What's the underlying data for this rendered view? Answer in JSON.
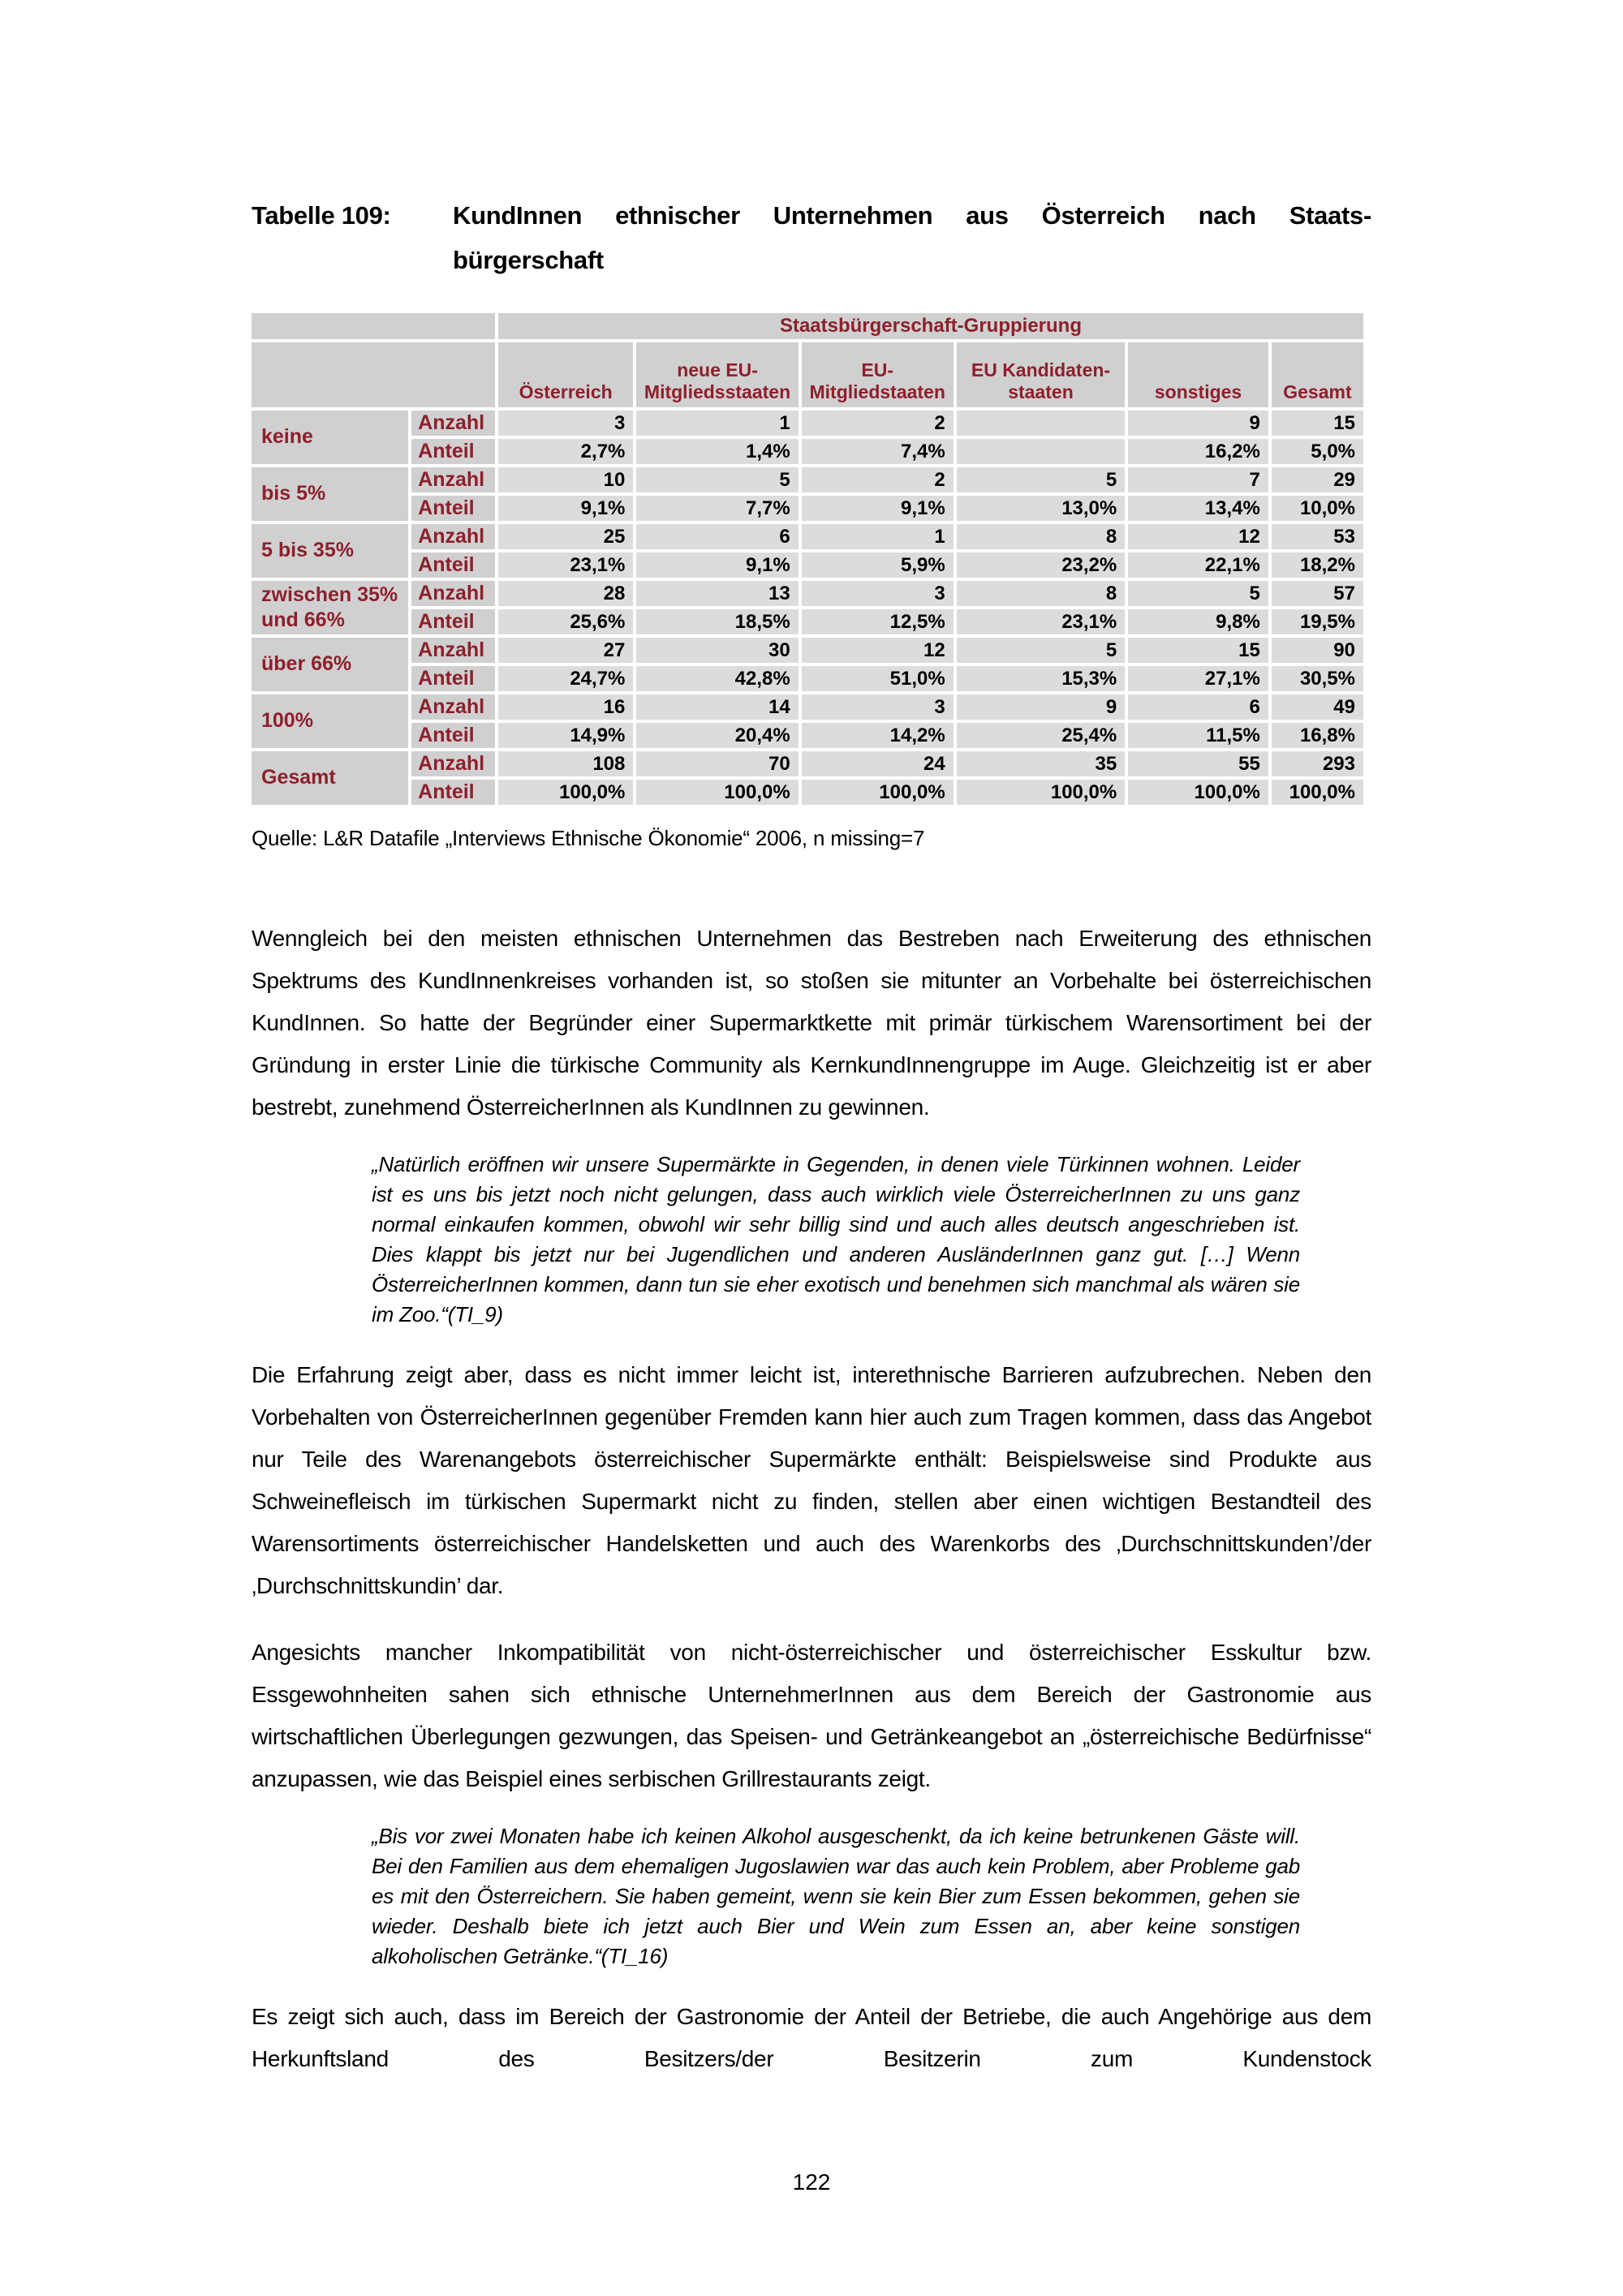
{
  "title": {
    "label": "Tabelle 109:",
    "line1": "KundInnen ethnischer Unternehmen aus Österreich nach Staats-",
    "line2": "bürgerschaft"
  },
  "table": {
    "group_header": "Staatsbürgerschaft-Gruppierung",
    "columns": [
      "Österreich",
      "neue EU-\nMitgliedsstaaten",
      "EU-\nMitgliedstaaten",
      "EU Kandidaten-\nstaaten",
      "sonstiges",
      "Gesamt"
    ],
    "measure_labels": [
      "Anzahl",
      "Anteil"
    ],
    "groups": [
      {
        "label": "keine",
        "anzahl": [
          "3",
          "1",
          "2",
          "",
          "9",
          "15"
        ],
        "anteil": [
          "2,7%",
          "1,4%",
          "7,4%",
          "",
          "16,2%",
          "5,0%"
        ]
      },
      {
        "label": "bis 5%",
        "anzahl": [
          "10",
          "5",
          "2",
          "5",
          "7",
          "29"
        ],
        "anteil": [
          "9,1%",
          "7,7%",
          "9,1%",
          "13,0%",
          "13,4%",
          "10,0%"
        ]
      },
      {
        "label": "5 bis 35%",
        "anzahl": [
          "25",
          "6",
          "1",
          "8",
          "12",
          "53"
        ],
        "anteil": [
          "23,1%",
          "9,1%",
          "5,9%",
          "23,2%",
          "22,1%",
          "18,2%"
        ]
      },
      {
        "label": "zwischen 35% und 66%",
        "anzahl": [
          "28",
          "13",
          "3",
          "8",
          "5",
          "57"
        ],
        "anteil": [
          "25,6%",
          "18,5%",
          "12,5%",
          "23,1%",
          "9,8%",
          "19,5%"
        ]
      },
      {
        "label": "über 66%",
        "anzahl": [
          "27",
          "30",
          "12",
          "5",
          "15",
          "90"
        ],
        "anteil": [
          "24,7%",
          "42,8%",
          "51,0%",
          "15,3%",
          "27,1%",
          "30,5%"
        ]
      },
      {
        "label": "100%",
        "anzahl": [
          "16",
          "14",
          "3",
          "9",
          "6",
          "49"
        ],
        "anteil": [
          "14,9%",
          "20,4%",
          "14,2%",
          "25,4%",
          "11,5%",
          "16,8%"
        ]
      },
      {
        "label": "Gesamt",
        "anzahl": [
          "108",
          "70",
          "24",
          "35",
          "55",
          "293"
        ],
        "anteil": [
          "100,0%",
          "100,0%",
          "100,0%",
          "100,0%",
          "100,0%",
          "100,0%"
        ]
      }
    ]
  },
  "source": "Quelle: L&R Datafile „Interviews Ethnische Ökonomie“ 2006, n missing=7",
  "paragraphs": {
    "p1": "Wenngleich bei den meisten ethnischen Unternehmen das Bestreben nach Erweiterung des ethnischen Spektrums des KundInnenkreises vorhanden ist, so stoßen sie mitunter an Vorbehalte bei österreichischen KundInnen. So hatte der Begründer einer Supermarktkette mit primär türkischem Warensortiment bei der Gründung in erster Linie die türkische Community als KernkundInnengruppe im Auge. Gleichzeitig ist er aber bestrebt, zunehmend ÖsterreicherInnen als KundInnen zu gewinnen.",
    "p2": "Die Erfahrung zeigt aber, dass es nicht immer leicht ist, interethnische Barrieren aufzubrechen. Neben den Vorbehalten von ÖsterreicherInnen gegenüber Fremden kann hier auch zum Tragen kommen, dass das Angebot nur Teile des Warenangebots österreichischer Supermärkte enthält: Beispielsweise sind Produkte aus Schweinefleisch im türkischen Supermarkt nicht zu finden, stellen aber einen wichtigen Bestandteil des Warensortiments österreichischer Handelsketten und auch des Warenkorbs des ‚Durchschnittskunden’/der ‚Durchschnittskundin’ dar.",
    "p3": "Angesichts mancher Inkompatibilität von nicht-österreichischer und österreichischer Esskultur bzw. Essgewohnheiten sahen sich ethnische UnternehmerInnen aus dem Bereich der Gastronomie aus wirtschaftlichen Überlegungen gezwungen, das Speisen- und Getränkeangebot an „österreichische Bedürfnisse“ anzupassen, wie das Beispiel eines serbischen Grillrestaurants zeigt.",
    "p4": "Es zeigt sich auch, dass im Bereich der Gastronomie der Anteil der Betriebe, die auch Angehörige aus dem Herkunftsland des Besitzers/der Besitzerin zum Kundenstock"
  },
  "quotes": {
    "q1": "„Natürlich eröffnen wir unsere Supermärkte in Gegenden, in denen viele Türkinnen wohnen. Leider ist es uns bis jetzt noch nicht gelungen, dass auch wirklich viele ÖsterreicherInnen zu uns ganz normal einkaufen kommen, obwohl wir sehr billig sind und auch alles deutsch angeschrieben ist. Dies klappt bis jetzt nur bei Jugendlichen und anderen AusländerInnen ganz gut. […] Wenn ÖsterreicherInnen kommen, dann tun sie eher exotisch und benehmen sich manchmal als wären sie im Zoo.“(TI_9)",
    "q2": "„Bis vor zwei Monaten habe ich keinen Alkohol ausgeschenkt, da ich keine betrunkenen Gäste will. Bei den Familien aus dem ehemaligen Jugoslawien war das auch kein Problem, aber Probleme gab es mit den Österreichern. Sie haben gemeint, wenn sie kein Bier zum Essen bekommen, gehen sie wieder. Deshalb biete ich jetzt auch Bier und Wein zum Essen an, aber keine sonstigen alkoholischen Getränke.“(TI_16)"
  },
  "page": {
    "number": "122"
  },
  "colors": {
    "accent": "#8e1f2c",
    "label_bg": "#d0d0d0",
    "cell_bg": "#dcdcdc"
  }
}
